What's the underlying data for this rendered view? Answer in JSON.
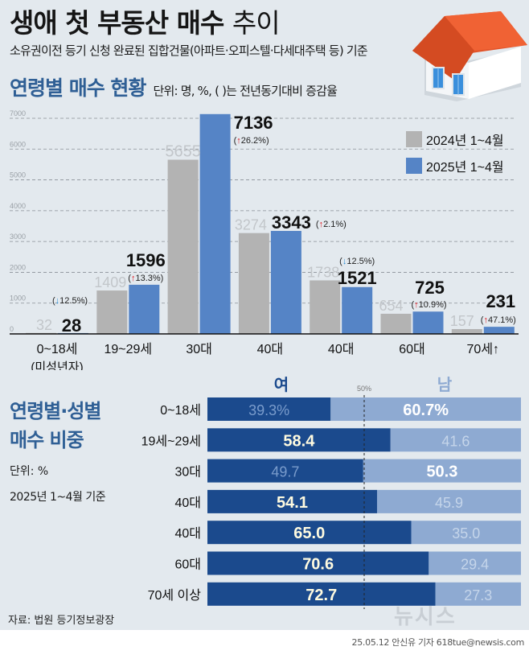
{
  "header": {
    "title_bold": "생애 첫 부동산 매수",
    "title_light": "추이",
    "subtitle": "소유권이전 등기 신청 완료된 집합건물(아파트·오피스텔·다세대주택 등) 기준"
  },
  "section1": {
    "heading": "연령별 매수 현황",
    "unit_note": "단위: 명, %, ( )는 전년동기대비 증감율"
  },
  "section2": {
    "heading_line1": "연령별·성별",
    "heading_line2": "매수 비중",
    "unit": "단위: %",
    "basis": "2025년 1~4월 기준"
  },
  "colors": {
    "bar_2024": "#b3b3b3",
    "bar_2025": "#5584c6",
    "female": "#1b4a8d",
    "male": "#8eaad2",
    "up_arrow": "#e0141b",
    "down_arrow": "#2a8fd6",
    "heading": "#2f5f95"
  },
  "chart_data": [
    {
      "type": "bar",
      "title": "연령별 매수 현황",
      "categories": [
        "0~18세",
        "19~29세",
        "30대",
        "40대",
        "40대",
        "60대",
        "70세↑"
      ],
      "category_sublabels": [
        "(미성년자)",
        "",
        "",
        "",
        "",
        "",
        ""
      ],
      "series": [
        {
          "name": "2024년 1~4월",
          "values": [
            32,
            1409,
            5655,
            3274,
            1738,
            654,
            157
          ]
        },
        {
          "name": "2025년 1~4월",
          "values": [
            28,
            1596,
            7136,
            3343,
            1521,
            725,
            231
          ]
        }
      ],
      "changes": [
        {
          "direction": "down",
          "label": "12.5%"
        },
        {
          "direction": "up",
          "label": "13.3%"
        },
        {
          "direction": "up",
          "label": "26.2%"
        },
        {
          "direction": "up",
          "label": "2.1%"
        },
        {
          "direction": "down",
          "label": "12.5%"
        },
        {
          "direction": "up",
          "label": "10.9%"
        },
        {
          "direction": "up",
          "label": "47.1%"
        }
      ],
      "ylim": [
        0,
        7000
      ],
      "yticks": [
        0,
        1000,
        2000,
        3000,
        4000,
        5000,
        6000,
        7000
      ],
      "grid": true,
      "legend": "top-right",
      "xlabel": "",
      "ylabel": ""
    },
    {
      "type": "bar",
      "stacked": true,
      "orientation": "horizontal",
      "title": "연령별·성별 매수 비중",
      "categories": [
        "0~18세",
        "19세~29세",
        "30대",
        "40대",
        "40대",
        "60대",
        "70세 이상"
      ],
      "series": [
        {
          "name": "여",
          "values": [
            39.3,
            58.4,
            49.7,
            54.1,
            65.0,
            70.6,
            72.7
          ],
          "labels": [
            "39.3%",
            "58.4",
            "49.7",
            "54.1",
            "65.0",
            "70.6",
            "72.7"
          ]
        },
        {
          "name": "남",
          "values": [
            60.7,
            41.6,
            50.3,
            45.9,
            35.0,
            29.4,
            27.3
          ],
          "labels": [
            "60.7%",
            "41.6",
            "50.3",
            "45.9",
            "35.0",
            "29.4",
            "27.3"
          ]
        }
      ],
      "reference_line": {
        "value": 50,
        "label": "50%"
      },
      "xlim": [
        0,
        100
      ]
    }
  ],
  "footer": {
    "source": "자료: 법원 등기정보광장",
    "credit": "25.05.12 안신유 기자 618tue@newsis.com",
    "watermark": "뉴시스"
  }
}
